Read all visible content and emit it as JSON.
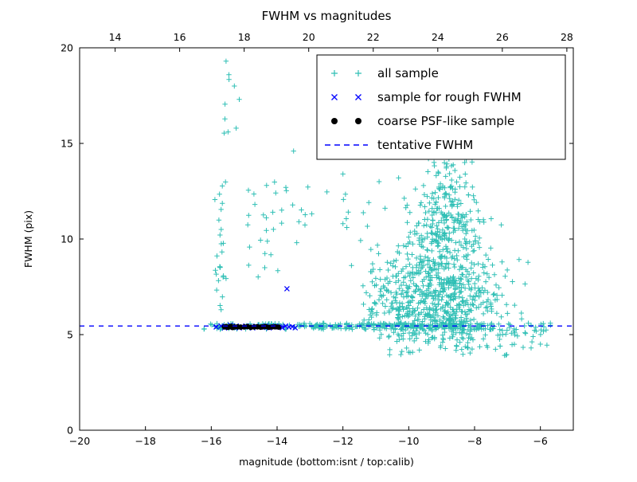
{
  "figure": {
    "background": "#ffffff",
    "border_color": "#000000"
  },
  "chart_data": {
    "type": "scatter",
    "title": "FWHM vs magnitudes",
    "xlabel": "magnitude (bottom:isnt / top:calib)",
    "ylabel": "FWHM (pix)",
    "xlim": [
      -20,
      -5
    ],
    "ylim": [
      0,
      20
    ],
    "top_xlim": [
      12.9,
      28.2
    ],
    "xticks": [
      -20,
      -18,
      -16,
      -14,
      -12,
      -10,
      -8,
      -6
    ],
    "top_xticks": [
      14,
      16,
      18,
      20,
      22,
      24,
      26,
      28
    ],
    "yticks": [
      0,
      5,
      10,
      15,
      20
    ],
    "grid": false,
    "legend_position": "upper right",
    "tentative_fwhm_y": 5.45,
    "seed": 7,
    "series": [
      {
        "name": "all sample",
        "marker": "plus",
        "color": "#2fbfb5",
        "points": [
          [
            -13.5,
            14.6
          ],
          [
            -11.5,
            14.4
          ],
          [
            -15.55,
            19.3
          ],
          [
            -15.3,
            18.0
          ],
          [
            -15.15,
            17.3
          ],
          [
            -12.0,
            13.4
          ],
          [
            -9.4,
            14.2
          ],
          [
            -8.9,
            14.5
          ],
          [
            -8.3,
            14.0
          ],
          [
            -6.0,
            4.5
          ],
          [
            -5.8,
            4.45
          ],
          [
            -10.9,
            13.0
          ]
        ],
        "clusters": [
          {
            "dist": "uniform",
            "count": 70,
            "x": [
              -16.25,
              -13.2
            ],
            "y": [
              5.28,
              5.58
            ]
          },
          {
            "dist": "uniform",
            "count": 240,
            "x": [
              -13.2,
              -7.4
            ],
            "y": [
              5.25,
              5.6
            ]
          },
          {
            "dist": "uniform",
            "count": 28,
            "x": [
              -7.4,
              -5.6
            ],
            "y": [
              4.95,
              5.6
            ]
          },
          {
            "dist": "uniform",
            "count": 60,
            "x": [
              -10.6,
              -6.2
            ],
            "y": [
              3.9,
              5.15
            ]
          },
          {
            "dist": "gauss",
            "count": 420,
            "cx": -9.3,
            "cy": 6.6,
            "sx": 0.95,
            "sy": 1.1,
            "clipx": [
              -12.0,
              -5.9
            ],
            "clipy": [
              4.2,
              14.8
            ]
          },
          {
            "dist": "gauss",
            "count": 260,
            "cx": -9.0,
            "cy": 9.2,
            "sx": 0.75,
            "sy": 1.7,
            "clipx": [
              -11.8,
              -6.0
            ],
            "clipy": [
              4.5,
              14.8
            ]
          },
          {
            "dist": "gauss",
            "count": 150,
            "cx": -8.8,
            "cy": 11.7,
            "sx": 0.4,
            "sy": 1.4,
            "clipx": [
              -10.5,
              -7.0
            ],
            "clipy": [
              5.0,
              14.6
            ]
          },
          {
            "dist": "uniform",
            "count": 90,
            "x": [
              -11.2,
              -7.2
            ],
            "y": [
              5.7,
              8.8
            ]
          },
          {
            "dist": "gauss",
            "count": 26,
            "cx": -15.75,
            "cy": 9.5,
            "sx": 0.09,
            "sy": 2.6,
            "clipx": [
              -16.1,
              -15.4
            ],
            "clipy": [
              5.6,
              14.6
            ]
          },
          {
            "dist": "uniform",
            "count": 7,
            "x": [
              -15.7,
              -15.1
            ],
            "y": [
              15.2,
              19.0
            ]
          },
          {
            "dist": "uniform",
            "count": 24,
            "x": [
              -14.9,
              -12.9
            ],
            "y": [
              10.4,
              13.3
            ]
          },
          {
            "dist": "uniform",
            "count": 10,
            "x": [
              -15.3,
              -13.4
            ],
            "y": [
              8.0,
              10.3
            ]
          },
          {
            "dist": "uniform",
            "count": 8,
            "x": [
              -12.6,
              -11.2
            ],
            "y": [
              10.6,
              13.6
            ]
          },
          {
            "dist": "uniform",
            "count": 10,
            "x": [
              -7.9,
              -6.2
            ],
            "y": [
              7.2,
              11.2
            ]
          }
        ]
      },
      {
        "name": "sample for rough FWHM",
        "marker": "x",
        "color": "#0000ff",
        "points": [
          [
            -15.85,
            5.4
          ],
          [
            -15.7,
            5.45
          ],
          [
            -15.6,
            5.35
          ],
          [
            -15.5,
            5.42
          ],
          [
            -15.42,
            5.5
          ],
          [
            -15.33,
            5.38
          ],
          [
            -15.24,
            5.45
          ],
          [
            -15.15,
            5.35
          ],
          [
            -15.05,
            5.4
          ],
          [
            -14.95,
            5.46
          ],
          [
            -14.85,
            5.4
          ],
          [
            -14.74,
            5.35
          ],
          [
            -14.64,
            5.44
          ],
          [
            -14.54,
            5.4
          ],
          [
            -14.44,
            5.38
          ],
          [
            -14.34,
            5.45
          ],
          [
            -14.24,
            5.35
          ],
          [
            -14.14,
            5.4
          ],
          [
            -14.04,
            5.44
          ],
          [
            -13.94,
            5.4
          ],
          [
            -13.84,
            5.36
          ],
          [
            -13.74,
            5.45
          ],
          [
            -13.64,
            5.4
          ],
          [
            -13.54,
            5.41
          ],
          [
            -13.45,
            5.36
          ],
          [
            -13.7,
            7.4
          ]
        ]
      },
      {
        "name": "coarse PSF-like sample",
        "marker": "dot",
        "color": "#000000",
        "points": [
          [
            -15.6,
            5.4
          ],
          [
            -15.55,
            5.42
          ],
          [
            -15.5,
            5.38
          ],
          [
            -15.45,
            5.4
          ],
          [
            -15.4,
            5.43
          ],
          [
            -15.35,
            5.37
          ],
          [
            -15.3,
            5.4
          ],
          [
            -15.2,
            5.41
          ],
          [
            -15.1,
            5.39
          ],
          [
            -15.0,
            5.4
          ],
          [
            -14.9,
            5.42
          ],
          [
            -14.8,
            5.38
          ],
          [
            -14.7,
            5.4
          ],
          [
            -14.6,
            5.41
          ],
          [
            -14.5,
            5.39
          ],
          [
            -14.45,
            5.4
          ],
          [
            -14.35,
            5.42
          ],
          [
            -14.25,
            5.38
          ],
          [
            -14.15,
            5.4
          ],
          [
            -14.05,
            5.41
          ],
          [
            -13.95,
            5.39
          ]
        ]
      },
      {
        "name": "tentative FWHM",
        "marker": "dashed-line",
        "color": "#0000ff",
        "y": 5.45
      }
    ]
  },
  "legend": {
    "entries": [
      {
        "label": "all sample"
      },
      {
        "label": "sample for rough FWHM"
      },
      {
        "label": "coarse PSF-like sample"
      },
      {
        "label": "tentative FWHM"
      }
    ]
  }
}
